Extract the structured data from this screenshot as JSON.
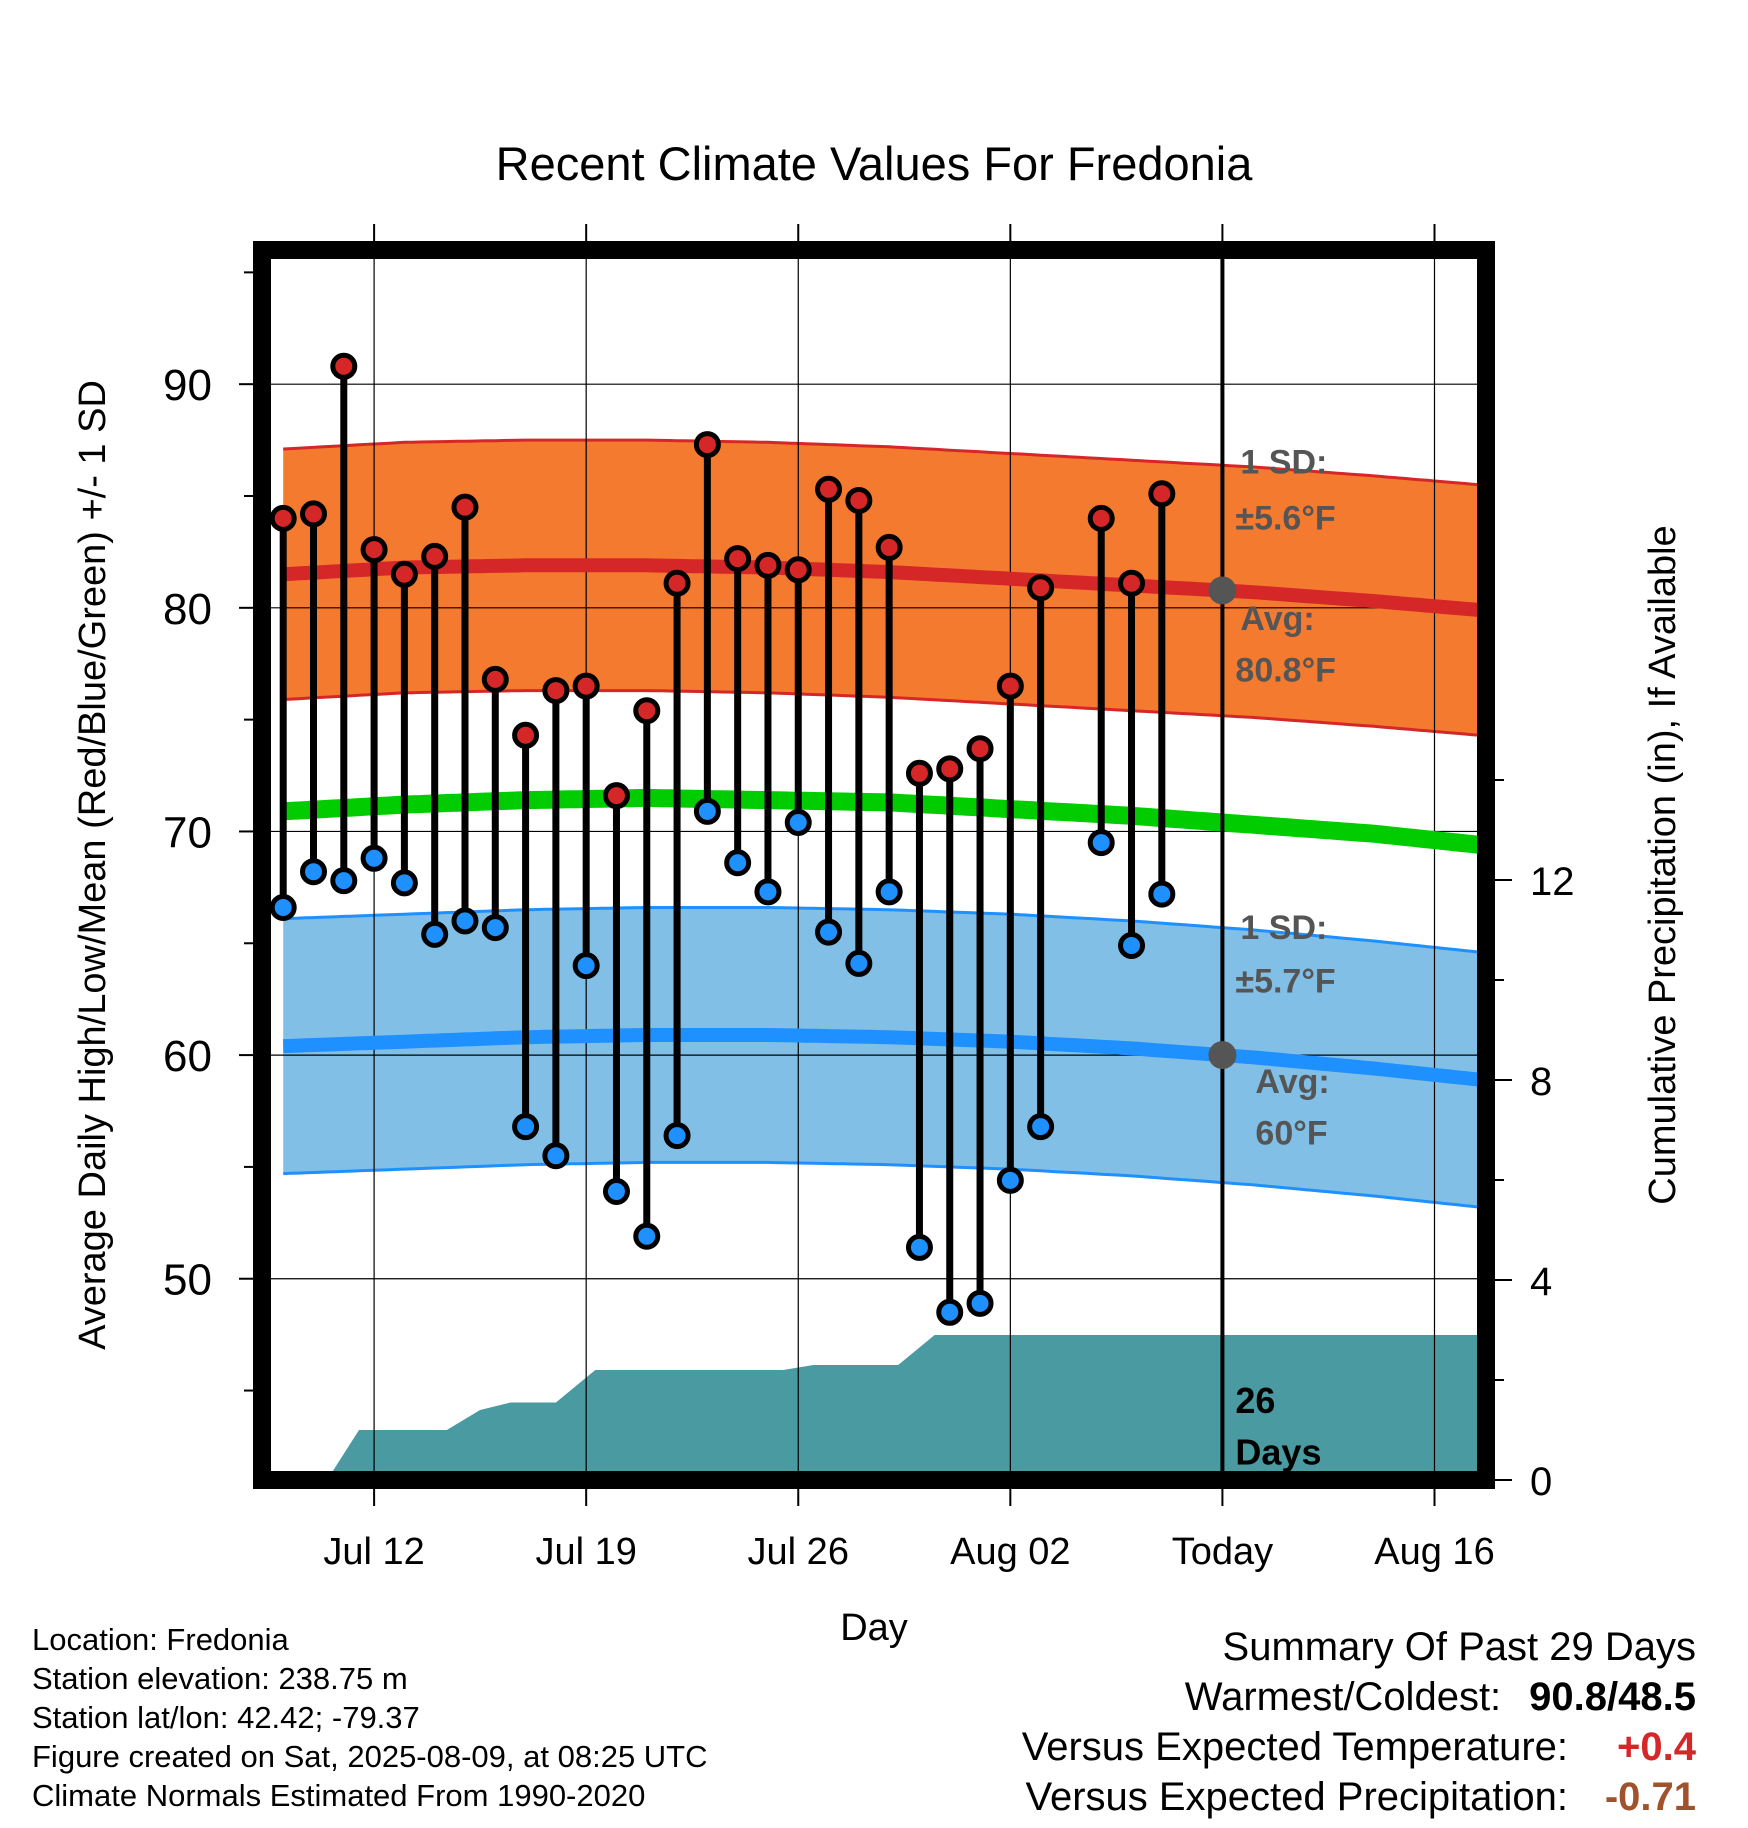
{
  "chart_data": {
    "type": "line",
    "title": "Recent Climate Values For Fredonia",
    "xlabel": "Day",
    "ylabel": "Average Daily High/Low/Mean (Red/Blue/Green) +/- 1 SD",
    "ylabel_right": "Cumulative Precipitation (in), If Available",
    "x_ticks": [
      {
        "day": 3,
        "label": "Jul 12"
      },
      {
        "day": 10,
        "label": "Jul 19"
      },
      {
        "day": 17,
        "label": "Jul 26"
      },
      {
        "day": 24,
        "label": "Aug 02"
      },
      {
        "day": 31,
        "label": "Today"
      },
      {
        "day": 38,
        "label": "Aug 16"
      }
    ],
    "x_start_date": "2025-07-09",
    "xlim": [
      -0.7,
      39.7
    ],
    "ylim": [
      41,
      96
    ],
    "y_ticks": [
      50,
      60,
      70,
      80,
      90
    ],
    "y2lim": [
      0,
      24.6
    ],
    "y2_ticks": [
      0,
      4,
      8,
      12
    ],
    "grid": true,
    "today_day": 31,
    "normal_days": [
      0,
      4,
      8,
      12,
      16,
      20,
      24,
      28,
      32,
      36,
      39.5
    ],
    "normal_high": [
      81.5,
      81.8,
      81.9,
      81.9,
      81.8,
      81.6,
      81.3,
      81.0,
      80.7,
      80.3,
      79.9
    ],
    "normal_high_sd": 5.6,
    "normal_low": [
      60.4,
      60.6,
      60.8,
      60.9,
      60.9,
      60.8,
      60.6,
      60.3,
      59.9,
      59.4,
      58.9
    ],
    "normal_low_sd": 5.7,
    "normal_mean": [
      70.9,
      71.2,
      71.4,
      71.5,
      71.4,
      71.3,
      71.0,
      70.7,
      70.3,
      69.9,
      69.4
    ],
    "daily": [
      {
        "day": 0,
        "high": 84.0,
        "low": 66.6
      },
      {
        "day": 1,
        "high": 84.2,
        "low": 68.2
      },
      {
        "day": 2,
        "high": 90.8,
        "low": 67.8
      },
      {
        "day": 3,
        "high": 82.6,
        "low": 68.8
      },
      {
        "day": 4,
        "high": 81.5,
        "low": 67.7
      },
      {
        "day": 5,
        "high": 82.3,
        "low": 65.4
      },
      {
        "day": 6,
        "high": 84.5,
        "low": 66.0
      },
      {
        "day": 7,
        "high": 76.8,
        "low": 65.7
      },
      {
        "day": 8,
        "high": 74.3,
        "low": 56.8
      },
      {
        "day": 9,
        "high": 76.3,
        "low": 55.5
      },
      {
        "day": 10,
        "high": 76.5,
        "low": 64.0
      },
      {
        "day": 11,
        "high": 71.6,
        "low": 53.9
      },
      {
        "day": 12,
        "high": 75.4,
        "low": 51.9
      },
      {
        "day": 13,
        "high": 81.1,
        "low": 56.4
      },
      {
        "day": 14,
        "high": 87.3,
        "low": 70.9
      },
      {
        "day": 15,
        "high": 82.2,
        "low": 68.6
      },
      {
        "day": 16,
        "high": 81.9,
        "low": 67.3
      },
      {
        "day": 17,
        "high": 81.7,
        "low": 70.4
      },
      {
        "day": 18,
        "high": 85.3,
        "low": 65.5
      },
      {
        "day": 19,
        "high": 84.8,
        "low": 64.1
      },
      {
        "day": 20,
        "high": 82.7,
        "low": 67.3
      },
      {
        "day": 21,
        "high": 72.6,
        "low": 51.4
      },
      {
        "day": 22,
        "high": 72.8,
        "low": 48.5
      },
      {
        "day": 23,
        "high": 73.7,
        "low": 48.9
      },
      {
        "day": 24,
        "high": 76.5,
        "low": 54.4
      },
      {
        "day": 25,
        "high": 80.9,
        "low": 56.8
      },
      {
        "day": 27,
        "high": 84.0,
        "low": 69.5
      },
      {
        "day": 28,
        "high": 81.1,
        "low": 64.9
      },
      {
        "day": 29,
        "high": 85.1,
        "low": 67.2
      }
    ],
    "precip_cumulative": [
      {
        "day": -0.7,
        "value": 0.0
      },
      {
        "day": 0,
        "value": 0.0
      },
      {
        "day": 0.5,
        "value": 0.05
      },
      {
        "day": 1.5,
        "value": 0.05
      },
      {
        "day": 2.5,
        "value": 1.0
      },
      {
        "day": 5.4,
        "value": 1.0
      },
      {
        "day": 6.5,
        "value": 1.4
      },
      {
        "day": 7.5,
        "value": 1.55
      },
      {
        "day": 9,
        "value": 1.55
      },
      {
        "day": 10.3,
        "value": 2.2
      },
      {
        "day": 16.5,
        "value": 2.2
      },
      {
        "day": 17.5,
        "value": 2.3
      },
      {
        "day": 20.3,
        "value": 2.3
      },
      {
        "day": 21.5,
        "value": 2.9
      },
      {
        "day": 39.7,
        "value": 2.9
      }
    ],
    "annotations": {
      "high_sd_label": "1 SD:",
      "high_sd_value": "±5.6°F",
      "high_avg_label": "Avg:",
      "high_avg_value": "80.8°F",
      "low_sd_label": "1 SD:",
      "low_sd_value": "±5.7°F",
      "low_avg_label": "Avg:",
      "low_avg_value": "60°F",
      "days_label_1": "26",
      "days_label_2": "Days"
    },
    "colors": {
      "high_band": "#f47a30",
      "high_line": "#d62728",
      "low_band": "#82bfe6",
      "low_line": "#1e90ff",
      "mean_line": "#00cc00",
      "precip": "#4a9aa1",
      "high_dot": "#d62728",
      "low_dot": "#1e90ff",
      "avg_marker": "#555555",
      "annotation_text": "#555555"
    }
  },
  "footer": {
    "location": "Location: Fredonia",
    "elevation": "Station elevation: 238.75 m",
    "latlon": "Station lat/lon: 42.42; -79.37",
    "created": "Figure created on Sat, 2025-08-09, at 08:25 UTC",
    "normals": "Climate Normals Estimated From 1990-2020"
  },
  "summary": {
    "title": "Summary Of Past 29 Days",
    "warm_cold_label": "Warmest/Coldest:",
    "warm_cold_value": "90.8/48.5",
    "temp_label": "Versus Expected Temperature:",
    "temp_value": "+0.4",
    "precip_label": "Versus Expected Precipitation:",
    "precip_value": "-0.71"
  }
}
